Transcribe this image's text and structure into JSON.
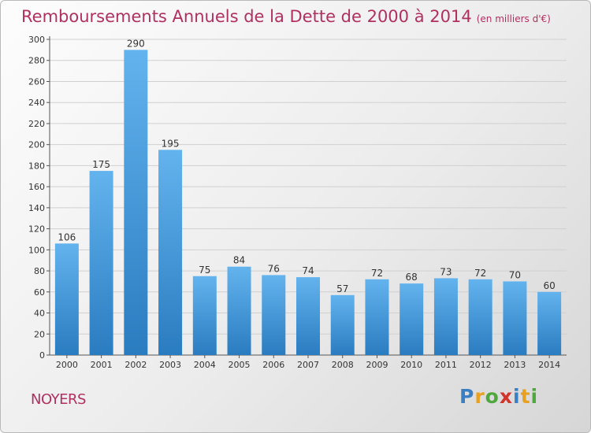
{
  "header": {
    "title": "Remboursements Annuels de la Dette de 2000 à 2014",
    "unit": "(en milliers d'€)"
  },
  "commune": "NOYERS",
  "logo": {
    "letters": [
      {
        "char": "P",
        "color": "#3a7fc4"
      },
      {
        "char": "r",
        "color": "#e8a020"
      },
      {
        "char": "o",
        "color": "#4fa83d"
      },
      {
        "char": "x",
        "color": "#d2342c"
      },
      {
        "char": "i",
        "color": "#3a7fc4"
      },
      {
        "char": "t",
        "color": "#e8a020"
      },
      {
        "char": "i",
        "color": "#4fa83d"
      }
    ]
  },
  "colors": {
    "bar_light": "#63b3ee",
    "bar_dark": "#2a7cc0",
    "title": "#b03060",
    "grid": "#d0d0d0"
  },
  "chart_data": {
    "type": "bar",
    "title": "Remboursements Annuels de la Dette de 2000 à 2014",
    "subtitle": "(en milliers d'€)",
    "xlabel": "",
    "ylabel": "",
    "categories": [
      "2000",
      "2001",
      "2002",
      "2003",
      "2004",
      "2005",
      "2006",
      "2007",
      "2008",
      "2009",
      "2010",
      "2011",
      "2012",
      "2013",
      "2014"
    ],
    "values": [
      106,
      175,
      290,
      195,
      75,
      84,
      76,
      74,
      57,
      72,
      68,
      73,
      72,
      70,
      60
    ],
    "ylim": [
      0,
      300
    ],
    "yticks": [
      0,
      20,
      40,
      60,
      80,
      100,
      120,
      140,
      160,
      180,
      200,
      220,
      240,
      260,
      280,
      300
    ],
    "grid": true,
    "data_labels": true
  }
}
